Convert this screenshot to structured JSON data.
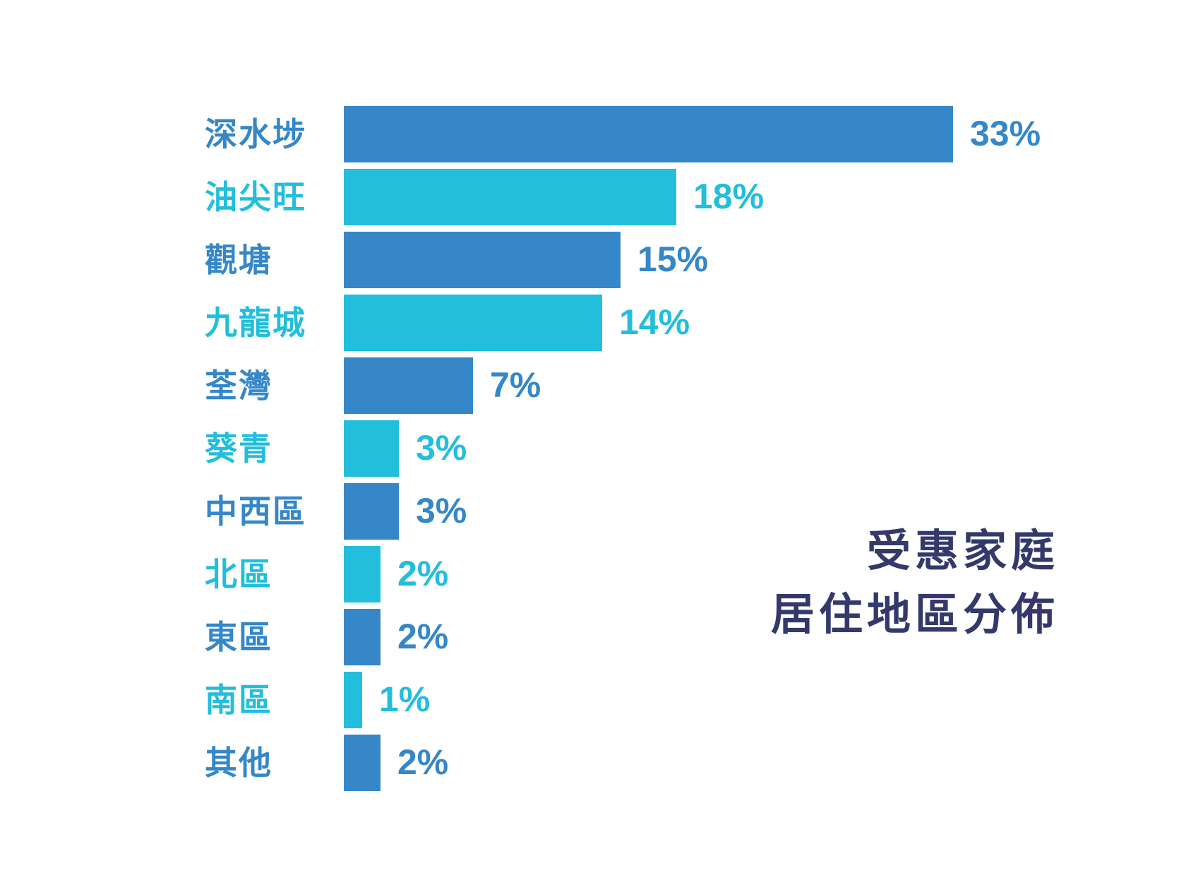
{
  "title": {
    "line1": "受惠家庭",
    "line2": "居住地區分佈"
  },
  "colors": {
    "dark_blue": "#3587c8",
    "light_blue": "#22bedb",
    "title": "#333a6b",
    "background": "#ffffff"
  },
  "chart_data": {
    "type": "bar",
    "orientation": "horizontal",
    "title": "受惠家庭居住地區分佈",
    "xlabel": "",
    "ylabel": "",
    "categories": [
      "深水埗",
      "油尖旺",
      "觀塘",
      "九龍城",
      "荃灣",
      "葵青",
      "中西區",
      "北區",
      "東區",
      "南區",
      "其他"
    ],
    "values": [
      33,
      18,
      15,
      14,
      7,
      3,
      3,
      2,
      2,
      1,
      2
    ],
    "value_labels": [
      "33%",
      "18%",
      "15%",
      "14%",
      "7%",
      "3%",
      "3%",
      "2%",
      "2%",
      "1%",
      "2%"
    ],
    "unit": "%",
    "grid": false,
    "legend": "none",
    "bar_colors": [
      "#3587c8",
      "#22bedb",
      "#3587c8",
      "#22bedb",
      "#3587c8",
      "#22bedb",
      "#3587c8",
      "#22bedb",
      "#3587c8",
      "#22bedb",
      "#3587c8"
    ]
  }
}
